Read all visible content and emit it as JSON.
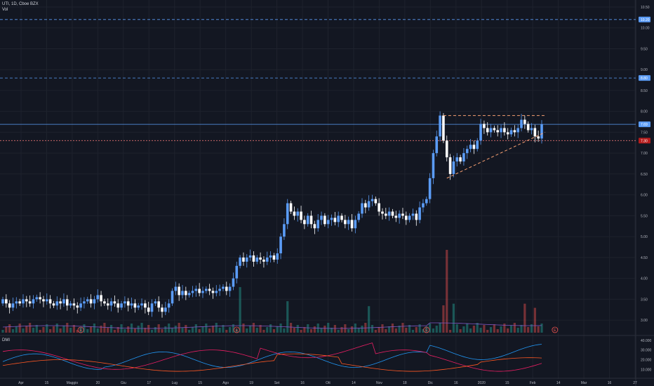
{
  "header": {
    "symbol_line": "UTI, 1D, Cboe BZX",
    "vol_label": "Vol"
  },
  "dmi_label": "DMI",
  "colors": {
    "background": "#131722",
    "grid": "#1e222d",
    "up": "#5b9cf6",
    "down": "#ffffff",
    "vol_up": "#26a69a",
    "vol_down": "#ef5350",
    "hline": "#5b9cf6",
    "trend": "#f7a072",
    "support": "#e57373",
    "dmi_plus": "#2196f3",
    "dmi_minus": "#e91e63",
    "adx": "#ff5722",
    "axis_text": "#b2b5be"
  },
  "chart_data": {
    "type": "candlestick",
    "price_axis": {
      "min": 2.7,
      "max": 10.6,
      "ticks": [
        "10.50",
        "10.00",
        "9.50",
        "9.00",
        "8.50",
        "8.00",
        "7.50",
        "7.00",
        "6.50",
        "6.00",
        "5.50",
        "5.00",
        "4.50",
        "4.00",
        "3.50",
        "3.00"
      ]
    },
    "price_badges": [
      {
        "value": 10.2,
        "label": "10.20",
        "style": "dashed"
      },
      {
        "value": 8.8,
        "label": "8.80",
        "style": "dashed"
      },
      {
        "value": 7.69,
        "label": "7.69",
        "style": "solid"
      },
      {
        "value": 7.3,
        "label": "7.30",
        "style": "dotted-red"
      }
    ],
    "date_axis": [
      "Apr",
      "15",
      "Maggio",
      "20",
      "Giu",
      "17",
      "Lug",
      "15",
      "Ago",
      "19",
      "Set",
      "16",
      "Ott",
      "14",
      "Nov",
      "18",
      "Dic",
      "16",
      "2020",
      "15",
      "Feb",
      "14",
      "Mar",
      "16",
      "27"
    ],
    "dmi_axis": [
      "40.000",
      "30.000",
      "20.000",
      "10.000"
    ],
    "earnings_marker": "E",
    "candles": [
      [
        3.4,
        3.5
      ],
      [
        3.5,
        3.4
      ],
      [
        3.4,
        3.3
      ],
      [
        3.3,
        3.4
      ],
      [
        3.4,
        3.45
      ],
      [
        3.45,
        3.4
      ],
      [
        3.4,
        3.5
      ],
      [
        3.5,
        3.45
      ],
      [
        3.45,
        3.4
      ],
      [
        3.4,
        3.5
      ],
      [
        3.5,
        3.55
      ],
      [
        3.55,
        3.5
      ],
      [
        3.5,
        3.45
      ],
      [
        3.45,
        3.5
      ],
      [
        3.5,
        3.4
      ],
      [
        3.4,
        3.35
      ],
      [
        3.35,
        3.45
      ],
      [
        3.45,
        3.4
      ],
      [
        3.4,
        3.5
      ],
      [
        3.5,
        3.35
      ],
      [
        3.35,
        3.4
      ],
      [
        3.4,
        3.35
      ],
      [
        3.35,
        3.3
      ],
      [
        3.3,
        3.4
      ],
      [
        3.4,
        3.45
      ],
      [
        3.45,
        3.5
      ],
      [
        3.5,
        3.4
      ],
      [
        3.4,
        3.5
      ],
      [
        3.5,
        3.6
      ],
      [
        3.6,
        3.45
      ],
      [
        3.45,
        3.4
      ],
      [
        3.4,
        3.35
      ],
      [
        3.35,
        3.45
      ],
      [
        3.45,
        3.4
      ],
      [
        3.4,
        3.3
      ],
      [
        3.3,
        3.4
      ],
      [
        3.4,
        3.45
      ],
      [
        3.45,
        3.35
      ],
      [
        3.35,
        3.4
      ],
      [
        3.4,
        3.3
      ],
      [
        3.3,
        3.35
      ],
      [
        3.35,
        3.4
      ],
      [
        3.4,
        3.3
      ],
      [
        3.3,
        3.2
      ],
      [
        3.2,
        3.4
      ],
      [
        3.4,
        3.45
      ],
      [
        3.45,
        3.3
      ],
      [
        3.3,
        3.2
      ],
      [
        3.2,
        3.3
      ],
      [
        3.3,
        3.4
      ],
      [
        3.4,
        3.7
      ],
      [
        3.7,
        3.8
      ],
      [
        3.8,
        3.6
      ],
      [
        3.6,
        3.7
      ],
      [
        3.7,
        3.6
      ],
      [
        3.6,
        3.65
      ],
      [
        3.65,
        3.7
      ],
      [
        3.7,
        3.75
      ],
      [
        3.75,
        3.65
      ],
      [
        3.65,
        3.7
      ],
      [
        3.7,
        3.75
      ],
      [
        3.75,
        3.7
      ],
      [
        3.7,
        3.65
      ],
      [
        3.65,
        3.7
      ],
      [
        3.7,
        3.75
      ],
      [
        3.75,
        3.8
      ],
      [
        3.8,
        3.7
      ],
      [
        3.7,
        3.8
      ],
      [
        3.8,
        4.0
      ],
      [
        4.0,
        4.3
      ],
      [
        4.3,
        4.5
      ],
      [
        4.5,
        4.4
      ],
      [
        4.4,
        4.5
      ],
      [
        4.5,
        4.55
      ],
      [
        4.55,
        4.4
      ],
      [
        4.4,
        4.5
      ],
      [
        4.5,
        4.45
      ],
      [
        4.45,
        4.4
      ],
      [
        4.4,
        4.5
      ],
      [
        4.5,
        4.55
      ],
      [
        4.55,
        4.45
      ],
      [
        4.45,
        4.6
      ],
      [
        4.6,
        5.0
      ],
      [
        5.0,
        5.3
      ],
      [
        5.3,
        5.8
      ],
      [
        5.8,
        5.6
      ],
      [
        5.6,
        5.5
      ],
      [
        5.5,
        5.6
      ],
      [
        5.6,
        5.4
      ],
      [
        5.4,
        5.3
      ],
      [
        5.3,
        5.5
      ],
      [
        5.5,
        5.3
      ],
      [
        5.3,
        5.2
      ],
      [
        5.2,
        5.4
      ],
      [
        5.4,
        5.5
      ],
      [
        5.5,
        5.3
      ],
      [
        5.3,
        5.4
      ],
      [
        5.4,
        5.45
      ],
      [
        5.45,
        5.35
      ],
      [
        5.35,
        5.5
      ],
      [
        5.5,
        5.4
      ],
      [
        5.4,
        5.3
      ],
      [
        5.3,
        5.4
      ],
      [
        5.4,
        5.2
      ],
      [
        5.2,
        5.4
      ],
      [
        5.4,
        5.55
      ],
      [
        5.55,
        5.8
      ],
      [
        5.8,
        5.7
      ],
      [
        5.7,
        5.85
      ],
      [
        5.85,
        5.9
      ],
      [
        5.9,
        5.8
      ],
      [
        5.8,
        5.6
      ],
      [
        5.6,
        5.55
      ],
      [
        5.55,
        5.5
      ],
      [
        5.5,
        5.6
      ],
      [
        5.6,
        5.5
      ],
      [
        5.5,
        5.45
      ],
      [
        5.45,
        5.55
      ],
      [
        5.55,
        5.5
      ],
      [
        5.5,
        5.4
      ],
      [
        5.4,
        5.5
      ],
      [
        5.5,
        5.55
      ],
      [
        5.55,
        5.4
      ],
      [
        5.4,
        5.7
      ],
      [
        5.7,
        5.8
      ],
      [
        5.8,
        5.9
      ],
      [
        5.9,
        6.4
      ],
      [
        6.4,
        7.0
      ],
      [
        7.0,
        7.4
      ],
      [
        7.4,
        7.9
      ],
      [
        7.9,
        7.3
      ],
      [
        7.3,
        6.9
      ],
      [
        6.9,
        6.5
      ],
      [
        6.5,
        6.8
      ],
      [
        6.8,
        6.9
      ],
      [
        6.9,
        6.8
      ],
      [
        6.8,
        7.0
      ],
      [
        7.0,
        7.1
      ],
      [
        7.1,
        7.2
      ],
      [
        7.2,
        7.1
      ],
      [
        7.1,
        7.3
      ],
      [
        7.3,
        7.7
      ],
      [
        7.7,
        7.6
      ],
      [
        7.6,
        7.5
      ],
      [
        7.5,
        7.6
      ],
      [
        7.6,
        7.55
      ],
      [
        7.55,
        7.5
      ],
      [
        7.5,
        7.6
      ],
      [
        7.6,
        7.5
      ],
      [
        7.5,
        7.45
      ],
      [
        7.45,
        7.55
      ],
      [
        7.55,
        7.5
      ],
      [
        7.5,
        7.6
      ],
      [
        7.6,
        7.8
      ],
      [
        7.8,
        7.7
      ],
      [
        7.7,
        7.55
      ],
      [
        7.55,
        7.6
      ],
      [
        7.6,
        7.4
      ],
      [
        7.4,
        7.35
      ],
      [
        7.35,
        7.69
      ]
    ],
    "volume_spikes": {
      "70": 0.55,
      "84": 0.38,
      "108": 0.32,
      "130": 0.33,
      "131": 1.0,
      "133": 0.35,
      "154": 0.35,
      "157": 0.3
    },
    "trendlines": [
      {
        "from": [
          130,
          7.9
        ],
        "to": [
          160,
          7.9
        ],
        "style": "dashed"
      },
      {
        "from": [
          131,
          6.4
        ],
        "to": [
          160,
          7.5
        ],
        "style": "dashed"
      }
    ]
  }
}
